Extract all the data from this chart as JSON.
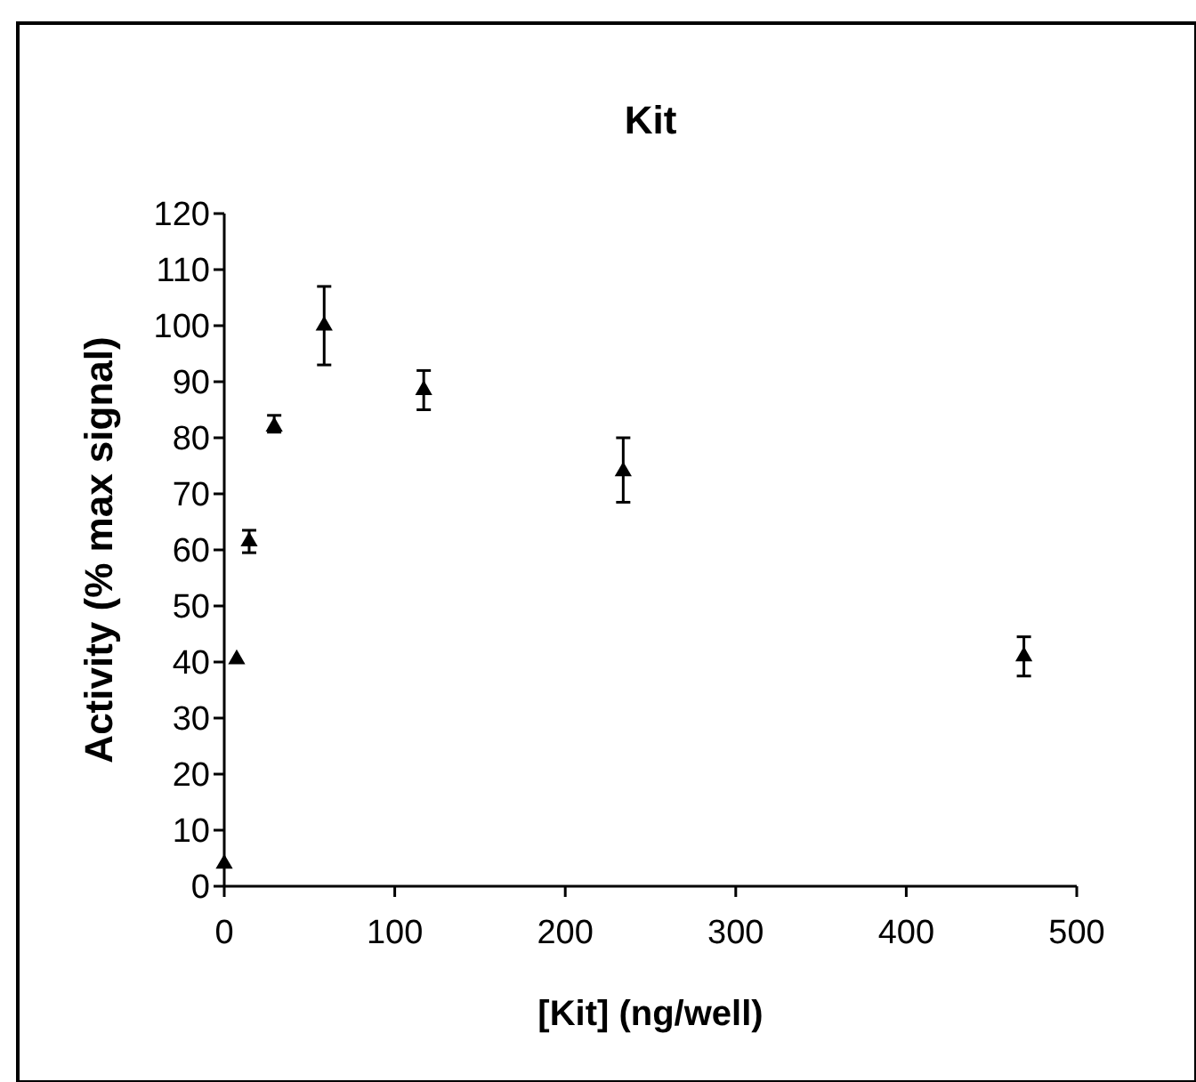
{
  "chart_data": {
    "type": "scatter",
    "title": "Kit",
    "xlabel": "[Kit] (ng/well)",
    "ylabel": "Activity (% max signal)",
    "x": [
      0,
      7.3,
      14.6,
      29.3,
      58.6,
      117,
      234,
      469
    ],
    "series": [
      {
        "color": "#000000",
        "values": [
          4,
          40.5,
          61.5,
          82,
          100,
          88.5,
          74,
          41
        ],
        "errors": [
          null,
          null,
          [
            59.5,
            63.5
          ],
          [
            81,
            84
          ],
          [
            93,
            107
          ],
          [
            85,
            92
          ],
          [
            68.5,
            80
          ],
          [
            37.5,
            44.5
          ]
        ]
      }
    ],
    "xlim": [
      0,
      500
    ],
    "xticks": [
      0,
      100,
      200,
      300,
      400,
      500
    ],
    "ylim": [
      0,
      120
    ],
    "yticks": [
      0,
      10,
      20,
      30,
      40,
      50,
      60,
      70,
      80,
      90,
      100,
      110,
      120
    ],
    "marker": "triangle"
  }
}
